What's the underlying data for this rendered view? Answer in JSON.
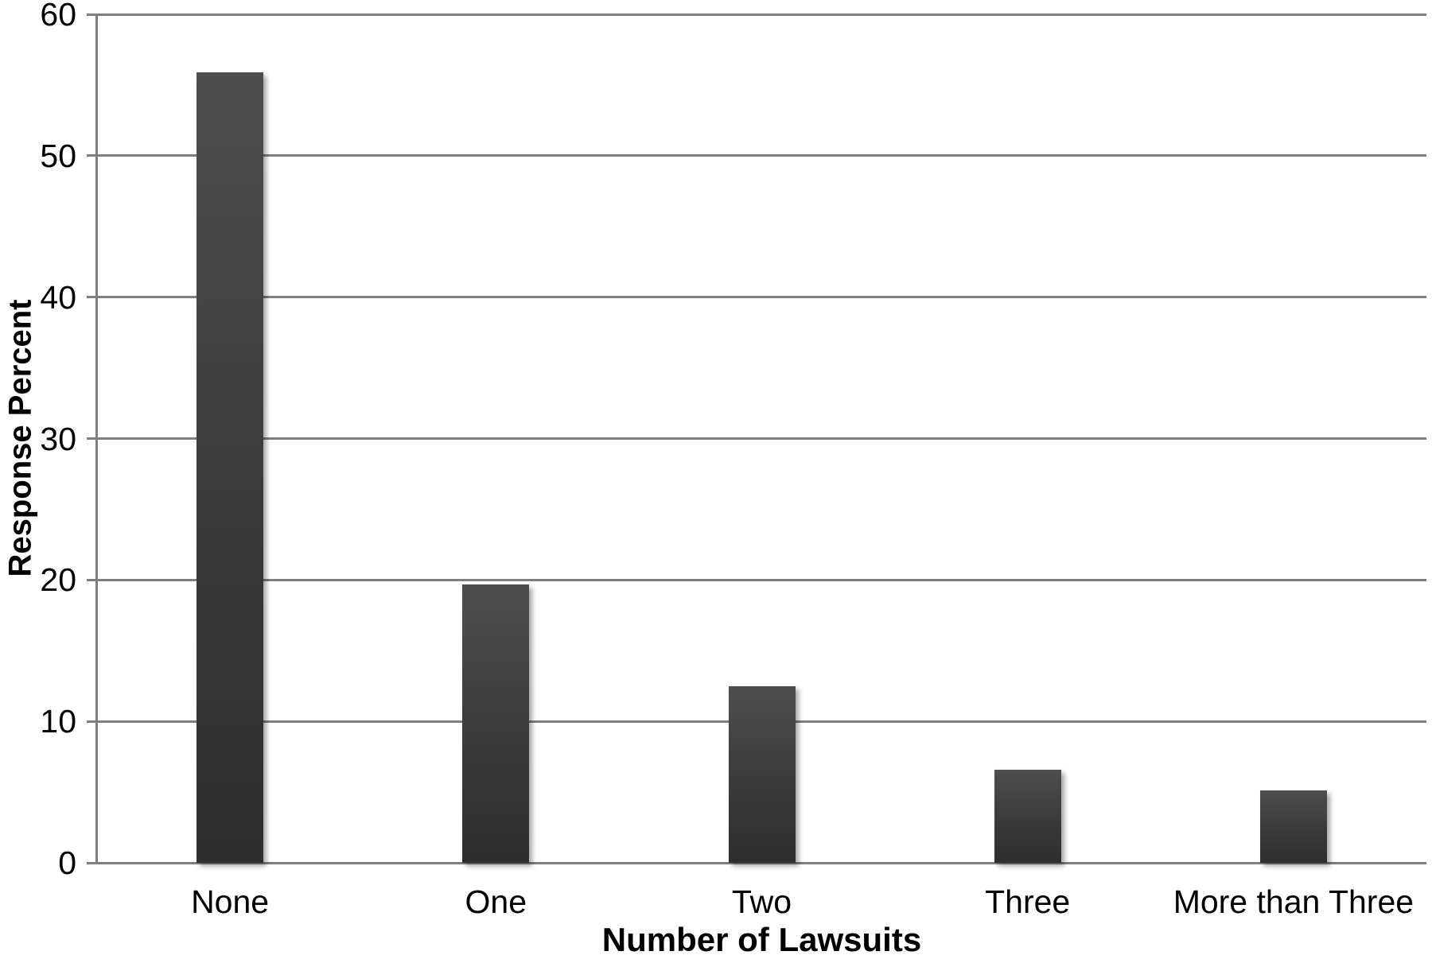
{
  "chart_data": {
    "type": "bar",
    "categories": [
      "None",
      "One",
      "Two",
      "Three",
      "More than Three"
    ],
    "values": [
      55.9,
      19.7,
      12.5,
      6.6,
      5.1
    ],
    "title": "",
    "xlabel": "Number of Lawsuits",
    "ylabel": "Response Percent",
    "ylim": [
      0,
      60
    ],
    "yticks": [
      0,
      10,
      20,
      30,
      40,
      50,
      60
    ],
    "grid": true,
    "legend": false,
    "layout_hints": {
      "gridlines_horizontal_full_width": true,
      "bars_overlap_gridlines": true,
      "y_ticks_outside_axis": true
    },
    "colors": {
      "bar_top": "#4e4e4e",
      "bar_bottom": "#2e2e2e",
      "gridline": "#7f7f7f",
      "axis": "#7f7f7f",
      "text": "#000000",
      "background": "#ffffff"
    }
  }
}
